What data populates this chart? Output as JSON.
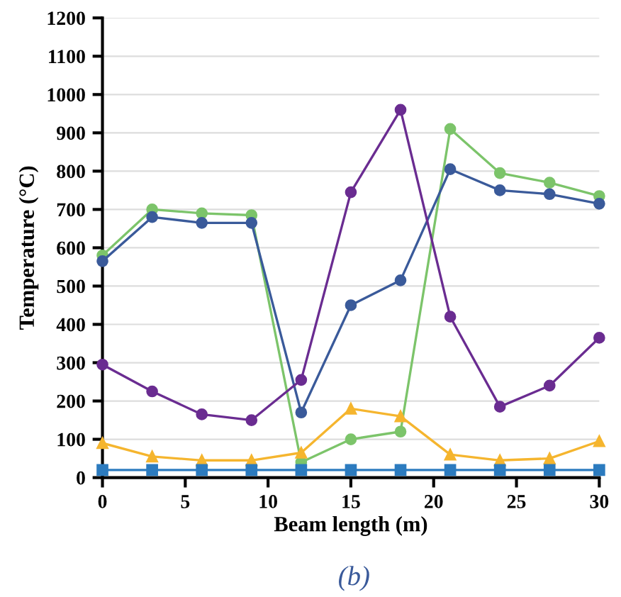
{
  "chart_data": {
    "type": "line",
    "xlabel": "Beam length (m)",
    "ylabel": "Temperature (°C)",
    "annotations": [
      "(b)"
    ],
    "x": [
      0,
      3,
      6,
      9,
      12,
      15,
      18,
      21,
      24,
      27,
      30
    ],
    "series": [
      {
        "color": "#7cc46a",
        "marker": "circle",
        "values": [
          580,
          700,
          690,
          685,
          40,
          100,
          120,
          910,
          795,
          770,
          735
        ]
      },
      {
        "color": "#3a5a9a",
        "marker": "circle",
        "values": [
          565,
          680,
          665,
          665,
          170,
          450,
          515,
          805,
          750,
          740,
          715
        ]
      },
      {
        "color": "#6a2c91",
        "marker": "circle",
        "values": [
          295,
          225,
          165,
          150,
          255,
          745,
          960,
          420,
          185,
          240,
          365
        ]
      },
      {
        "color": "#f5b52e",
        "marker": "triangle",
        "values": [
          90,
          55,
          45,
          45,
          65,
          180,
          160,
          60,
          45,
          50,
          95
        ]
      },
      {
        "color": "#2c7bbf",
        "marker": "square",
        "values": [
          20,
          20,
          20,
          20,
          20,
          20,
          20,
          20,
          20,
          20,
          20
        ]
      }
    ],
    "xlim": [
      0,
      30
    ],
    "xticks": [
      0,
      5,
      10,
      15,
      20,
      25,
      30
    ],
    "ylim": [
      0,
      1200
    ],
    "yticks": [
      0,
      100,
      200,
      300,
      400,
      500,
      600,
      700,
      800,
      900,
      1000,
      1100,
      1200
    ],
    "grid": "y",
    "legend": false
  }
}
